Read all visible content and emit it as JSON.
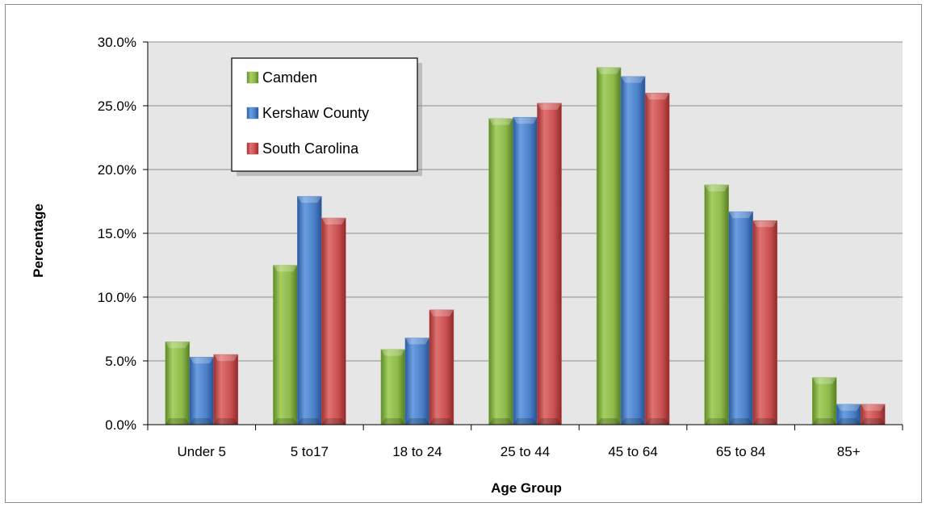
{
  "chart_data": {
    "type": "bar",
    "title": "",
    "xlabel": "Age Group",
    "ylabel": "Percentage",
    "ylim": [
      0,
      30
    ],
    "yticks": [
      "0.0%",
      "5.0%",
      "10.0%",
      "15.0%",
      "20.0%",
      "25.0%",
      "30.0%"
    ],
    "categories": [
      "Under 5",
      "5 to17",
      "18 to 24",
      "25 to 44",
      "45 to 64",
      "65 to 84",
      "85+"
    ],
    "series": [
      {
        "name": "Camden",
        "values": [
          6.5,
          12.5,
          5.9,
          24.0,
          28.0,
          18.8,
          3.7
        ]
      },
      {
        "name": "Kershaw County",
        "values": [
          5.3,
          17.9,
          6.8,
          24.1,
          27.3,
          16.7,
          1.6
        ]
      },
      {
        "name": "South Carolina",
        "values": [
          5.5,
          16.2,
          9.0,
          25.2,
          26.0,
          16.0,
          1.6
        ]
      }
    ],
    "legend_position": "top-left",
    "grid": true,
    "colors": {
      "series": [
        "#8db84a",
        "#4a80c8",
        "#c94f4f"
      ],
      "plot_background": "#e6e6e6",
      "gridline": "#8c8c8c"
    }
  }
}
